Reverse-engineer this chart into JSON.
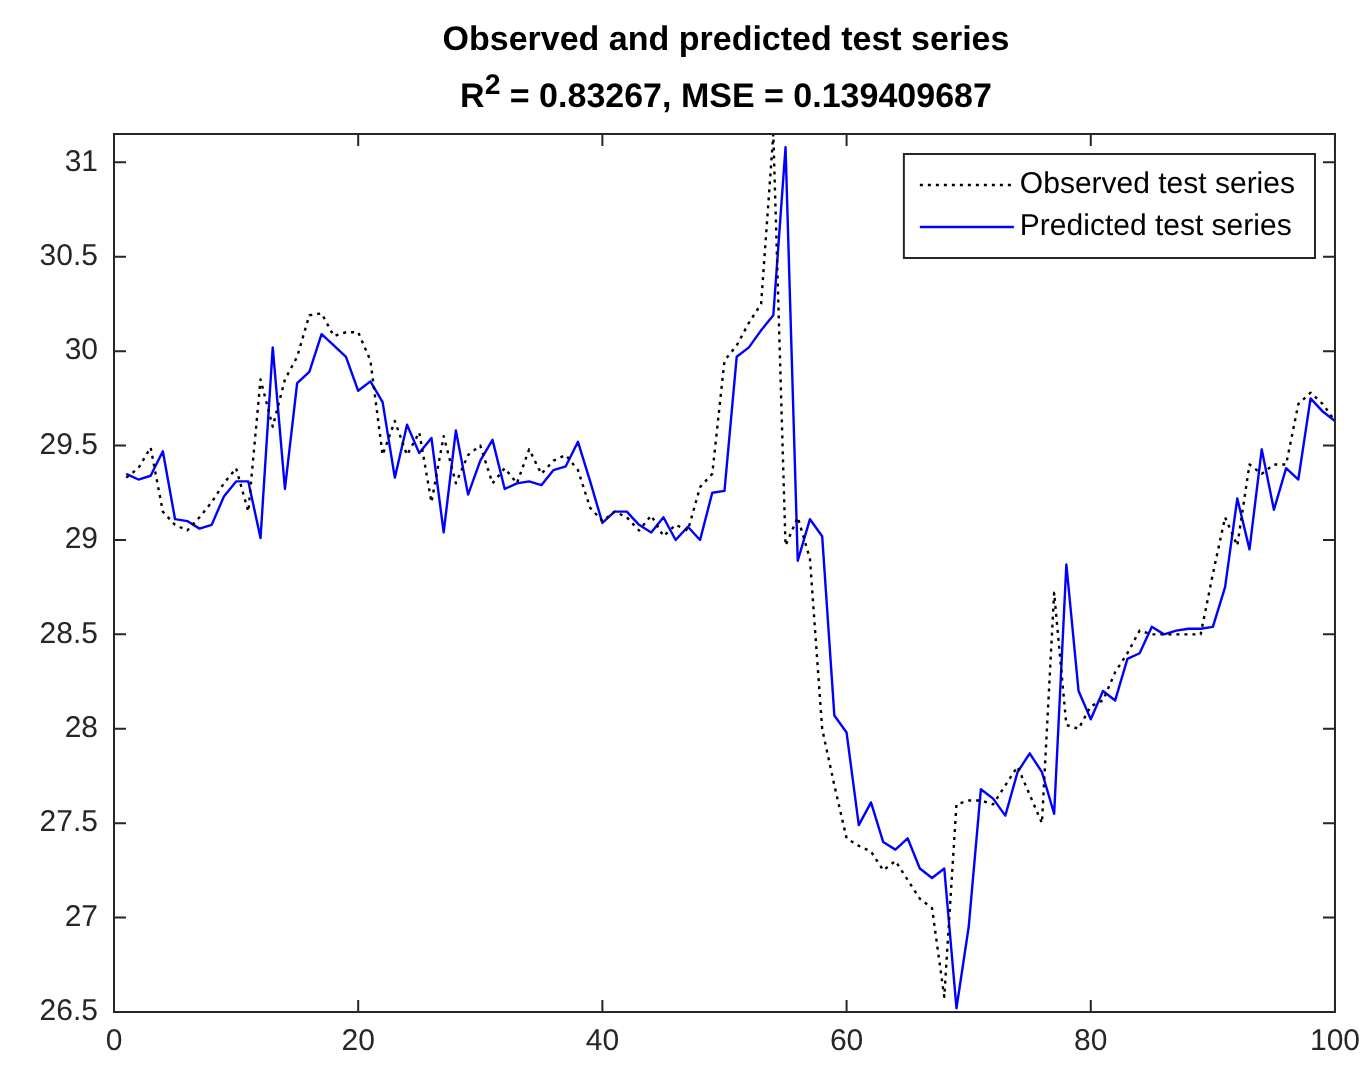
{
  "chart_data": {
    "type": "line",
    "title": "Observed and predicted test series",
    "subtitle": "R$^{2}$ = 0.83267,  MSE = 0.139409687",
    "x": [
      1,
      2,
      3,
      4,
      5,
      6,
      7,
      8,
      9,
      10,
      11,
      12,
      13,
      14,
      15,
      16,
      17,
      18,
      19,
      20,
      21,
      22,
      23,
      24,
      25,
      26,
      27,
      28,
      29,
      30,
      31,
      32,
      33,
      34,
      35,
      36,
      37,
      38,
      39,
      40,
      41,
      42,
      43,
      44,
      45,
      46,
      47,
      48,
      49,
      50,
      51,
      52,
      53,
      54,
      55,
      56,
      57,
      58,
      59,
      60,
      61,
      62,
      63,
      64,
      65,
      66,
      67,
      68,
      69,
      70,
      71,
      72,
      73,
      74,
      75,
      76,
      77,
      78,
      79,
      80,
      81,
      82,
      83,
      84,
      85,
      86,
      87,
      88,
      89,
      90,
      91,
      92,
      93,
      94,
      95,
      96,
      97,
      98,
      99,
      100
    ],
    "series": [
      {
        "name": "Observed test series",
        "color": "#000000",
        "line_style": "dotted",
        "values": [
          29.33,
          29.38,
          29.49,
          29.15,
          29.08,
          29.05,
          29.12,
          29.2,
          29.3,
          29.38,
          29.15,
          29.85,
          29.6,
          29.85,
          29.97,
          30.19,
          30.2,
          30.08,
          30.1,
          30.1,
          29.95,
          29.45,
          29.63,
          29.45,
          29.57,
          29.2,
          29.55,
          29.3,
          29.45,
          29.5,
          29.3,
          29.38,
          29.3,
          29.48,
          29.35,
          29.42,
          29.45,
          29.37,
          29.17,
          29.1,
          29.15,
          29.12,
          29.05,
          29.13,
          29.02,
          29.08,
          29.05,
          29.28,
          29.35,
          29.95,
          30.03,
          30.15,
          30.25,
          31.15,
          28.97,
          29.12,
          28.9,
          28.0,
          27.7,
          27.42,
          27.38,
          27.35,
          27.25,
          27.3,
          27.2,
          27.1,
          27.05,
          26.58,
          27.6,
          27.62,
          27.62,
          27.6,
          27.7,
          27.8,
          27.65,
          27.5,
          28.72,
          28.02,
          28.0,
          28.12,
          28.15,
          28.3,
          28.4,
          28.52,
          28.5,
          28.5,
          28.5,
          28.5,
          28.5,
          28.82,
          29.12,
          28.97,
          29.4,
          29.35,
          29.4,
          29.4,
          29.72,
          29.78,
          29.72,
          29.63
        ]
      },
      {
        "name": "Predicted test series",
        "color": "#0000ff",
        "line_style": "solid",
        "values": [
          29.35,
          29.32,
          29.34,
          29.47,
          29.11,
          29.1,
          29.06,
          29.08,
          29.23,
          29.31,
          29.31,
          29.01,
          30.02,
          29.27,
          29.83,
          29.89,
          30.09,
          30.03,
          29.97,
          29.79,
          29.84,
          29.73,
          29.33,
          29.61,
          29.46,
          29.54,
          29.04,
          29.58,
          29.24,
          29.42,
          29.53,
          29.27,
          29.3,
          29.31,
          29.29,
          29.37,
          29.39,
          29.52,
          29.31,
          29.09,
          29.15,
          29.15,
          29.08,
          29.04,
          29.12,
          29.0,
          29.07,
          29.0,
          29.25,
          29.26,
          29.97,
          30.02,
          30.11,
          30.19,
          31.08,
          28.89,
          29.11,
          29.02,
          28.07,
          27.98,
          27.49,
          27.61,
          27.4,
          27.36,
          27.42,
          27.26,
          27.21,
          27.26,
          26.52,
          26.95,
          27.68,
          27.63,
          27.54,
          27.77,
          27.87,
          27.77,
          27.55,
          28.87,
          28.2,
          28.05,
          28.2,
          28.15,
          28.37,
          28.4,
          28.54,
          28.5,
          28.52,
          28.53,
          28.53,
          28.54,
          28.75,
          29.22,
          28.95,
          29.48,
          29.16,
          29.38,
          29.32,
          29.75,
          29.68,
          29.63
        ]
      }
    ],
    "xlim": [
      0,
      100
    ],
    "xticks": [
      0,
      20,
      40,
      60,
      80,
      100
    ],
    "ylim": [
      26.5,
      31.15
    ],
    "yticks": [
      26.5,
      27,
      27.5,
      28,
      28.5,
      29,
      29.5,
      30,
      30.5,
      31
    ],
    "legend": "top right",
    "marker": "none",
    "grid": false
  }
}
